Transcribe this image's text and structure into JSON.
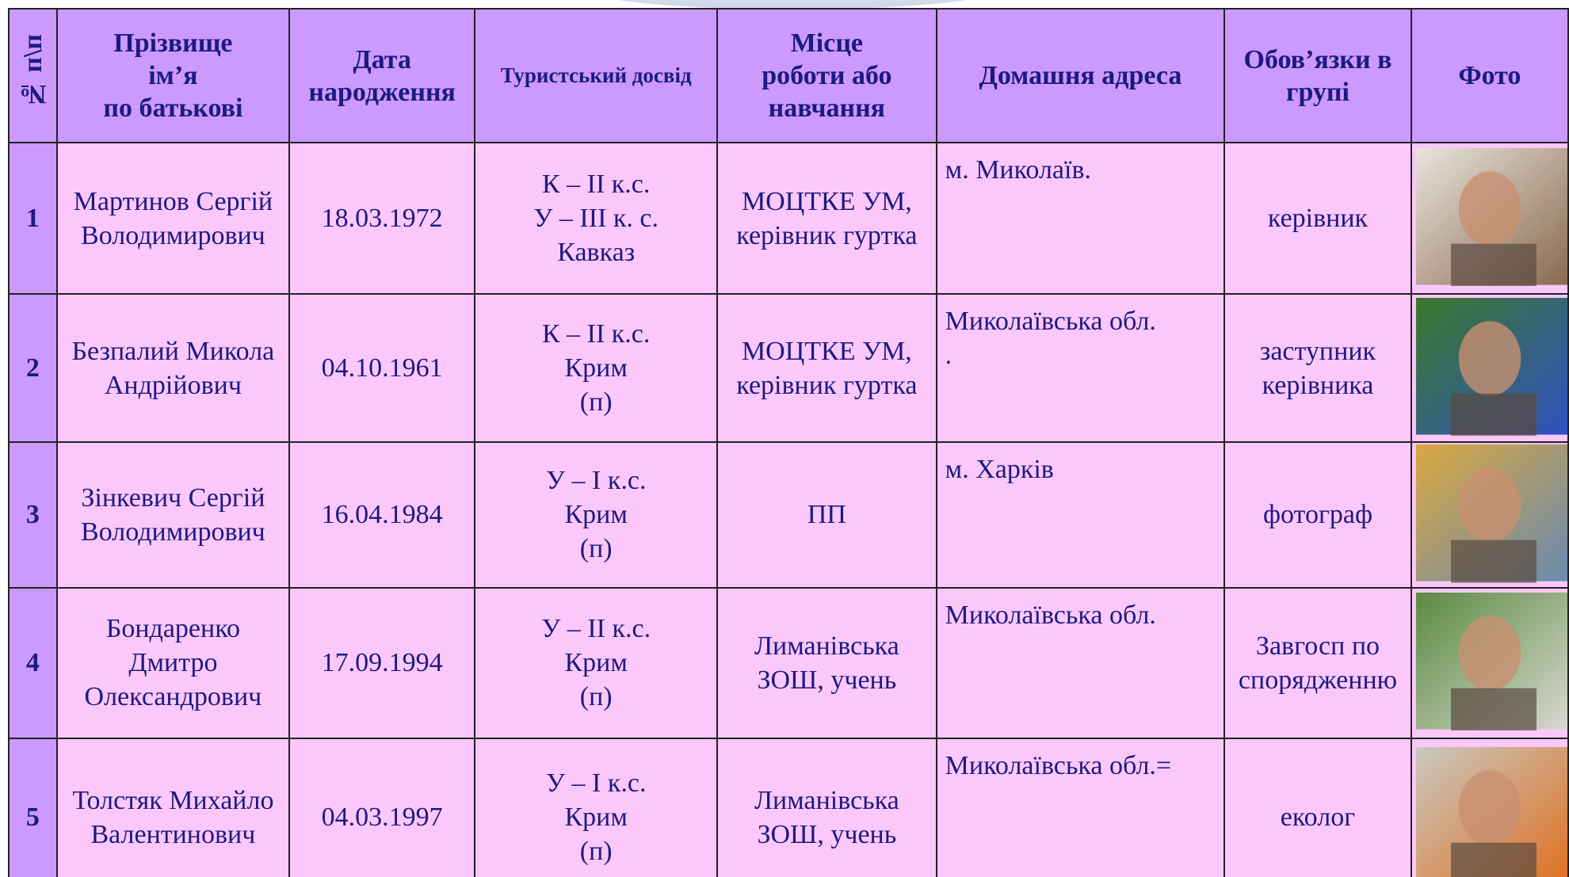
{
  "table": {
    "headers": [
      [
        "№ п\\п"
      ],
      [
        "Прізвище",
        "ім’я",
        "по батькові"
      ],
      [
        "Дата",
        "народження"
      ],
      [
        "Туристський досвід"
      ],
      [
        "Місце",
        "роботи або",
        "навчання"
      ],
      [
        "Домашня адреса"
      ],
      [
        "Обов’язки  в",
        "групі"
      ],
      [
        "Фото"
      ]
    ],
    "rows": [
      [
        [
          "1"
        ],
        [
          "Мартинов Сергій",
          "Володимирович"
        ],
        [
          "18.03.1972"
        ],
        [
          "К – ІІ к.с.",
          "У – ІІІ к. с.",
          "Кавказ"
        ],
        [
          "МОЦТКЕ УМ,",
          "керівник гуртка"
        ],
        [
          "м. Миколаїв."
        ],
        [
          "керівник"
        ]
      ],
      [
        [
          "2"
        ],
        [
          "Безпалий Микола",
          "Андрійович"
        ],
        [
          "04.10.1961"
        ],
        [
          "К – ІІ к.с.",
          "Крим",
          "(п)"
        ],
        [
          "МОЦТКЕ УМ,",
          "керівник гуртка"
        ],
        [
          "Миколаївська обл.",
          "."
        ],
        [
          "заступник",
          "керівника"
        ]
      ],
      [
        [
          "3"
        ],
        [
          "Зінкевич Сергій",
          "Володимирович"
        ],
        [
          "16.04.1984"
        ],
        [
          "У – І к.с.",
          "Крим",
          "(п)"
        ],
        [
          "ПП"
        ],
        [
          "м. Харків"
        ],
        [
          "фотограф"
        ]
      ],
      [
        [
          "4"
        ],
        [
          "Бондаренко",
          "Дмитро",
          "Олександрович"
        ],
        [
          "17.09.1994"
        ],
        [
          "У – ІІ к.с.",
          "Крим",
          "(п)"
        ],
        [
          "Лиманівська",
          "ЗОШ, учень"
        ],
        [
          "Миколаївська обл."
        ],
        [
          "Завгосп по",
          "спорядженню"
        ]
      ],
      [
        [
          "5"
        ],
        [
          "Толстяк Михайло",
          "Валентинович"
        ],
        [
          "04.03.1997"
        ],
        [
          "У – І к.с.",
          "Крим",
          "(п)"
        ],
        [
          "Лиманівська",
          "ЗОШ, учень"
        ],
        [
          "Миколаївська обл.="
        ],
        [
          "еколог"
        ]
      ]
    ]
  }
}
